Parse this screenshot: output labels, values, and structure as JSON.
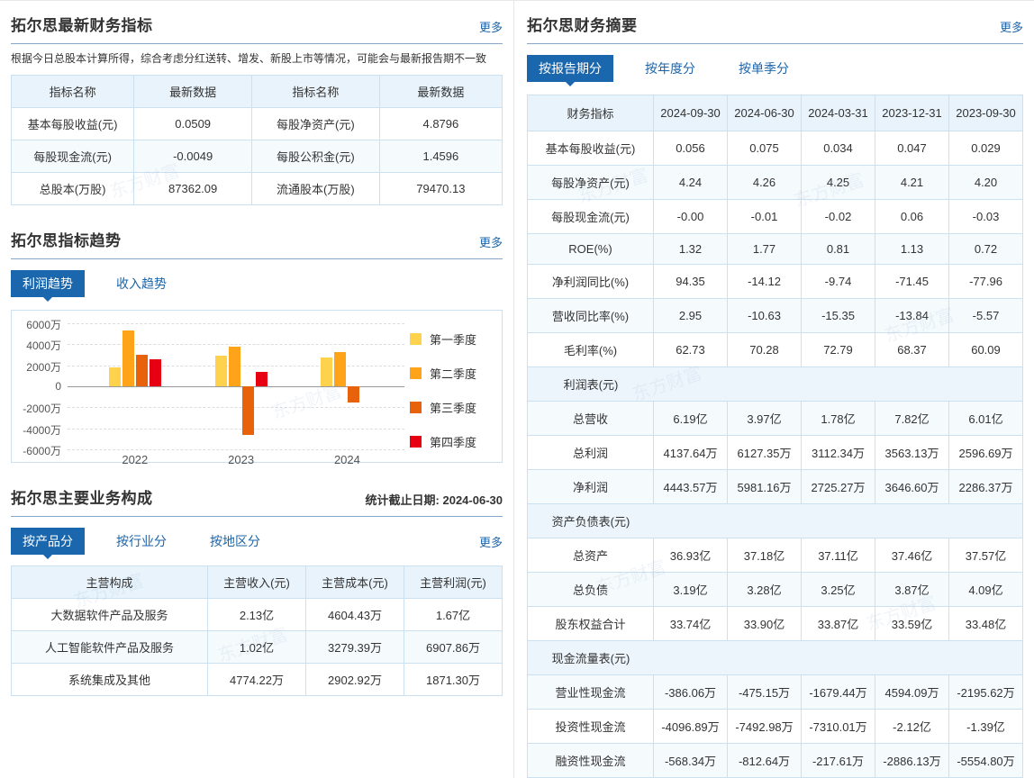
{
  "colors": {
    "accent_blue": "#1A67AD",
    "link_blue": "#1C65A9",
    "table_border": "#CBE0F1",
    "table_header_bg": "#E8F3FB",
    "row_alt_bg": "#F5FAFD",
    "section_row_bg": "#EDF5FC",
    "q1_yellow": "#FFD24D",
    "q2_orange": "#FFA319",
    "q3_dark_orange": "#E8620C",
    "q4_red": "#E60012"
  },
  "watermark": "东方财富",
  "left": {
    "latest": {
      "title": "拓尔思最新财务指标",
      "more": "更多",
      "note": "根据今日总股本计算所得，综合考虑分红送转、增发、新股上市等情况，可能会与最新报告期不一致",
      "table": {
        "headers": [
          "指标名称",
          "最新数据",
          "指标名称",
          "最新数据"
        ],
        "rows": [
          [
            "基本每股收益(元)",
            "0.0509",
            "每股净资产(元)",
            "4.8796"
          ],
          [
            "每股现金流(元)",
            "-0.0049",
            "每股公积金(元)",
            "1.4596"
          ],
          [
            "总股本(万股)",
            "87362.09",
            "流通股本(万股)",
            "79470.13"
          ]
        ]
      }
    },
    "trend": {
      "title": "拓尔思指标趋势",
      "more": "更多",
      "tabs": [
        {
          "label": "利润趋势",
          "active": true
        },
        {
          "label": "收入趋势",
          "active": false
        }
      ]
    },
    "business": {
      "title": "拓尔思主要业务构成",
      "date_label": "统计截止日期: 2024-06-30",
      "more": "更多",
      "tabs": [
        {
          "label": "按产品分",
          "active": true
        },
        {
          "label": "按行业分",
          "active": false
        },
        {
          "label": "按地区分",
          "active": false
        }
      ],
      "table": {
        "headers": [
          "主营构成",
          "主营收入(元)",
          "主营成本(元)",
          "主营利润(元)"
        ],
        "rows": [
          [
            "大数据软件产品及服务",
            "2.13亿",
            "4604.43万",
            "1.67亿"
          ],
          [
            "人工智能软件产品及服务",
            "1.02亿",
            "3279.39万",
            "6907.86万"
          ],
          [
            "系统集成及其他",
            "4774.22万",
            "2902.92万",
            "1871.30万"
          ]
        ]
      }
    }
  },
  "right": {
    "summary": {
      "title": "拓尔思财务摘要",
      "more": "更多",
      "tabs": [
        {
          "label": "按报告期分",
          "active": true
        },
        {
          "label": "按年度分",
          "active": false
        },
        {
          "label": "按单季分",
          "active": false
        }
      ],
      "table": {
        "headers": [
          "财务指标",
          "2024-09-30",
          "2024-06-30",
          "2024-03-31",
          "2023-12-31",
          "2023-09-30"
        ],
        "rows": [
          {
            "type": "data",
            "cells": [
              "基本每股收益(元)",
              "0.056",
              "0.075",
              "0.034",
              "0.047",
              "0.029"
            ]
          },
          {
            "type": "data",
            "cells": [
              "每股净资产(元)",
              "4.24",
              "4.26",
              "4.25",
              "4.21",
              "4.20"
            ]
          },
          {
            "type": "data",
            "cells": [
              "每股现金流(元)",
              "-0.00",
              "-0.01",
              "-0.02",
              "0.06",
              "-0.03"
            ]
          },
          {
            "type": "data",
            "cells": [
              "ROE(%)",
              "1.32",
              "1.77",
              "0.81",
              "1.13",
              "0.72"
            ]
          },
          {
            "type": "data",
            "cells": [
              "净利润同比(%)",
              "94.35",
              "-14.12",
              "-9.74",
              "-71.45",
              "-77.96"
            ]
          },
          {
            "type": "data",
            "cells": [
              "营收同比率(%)",
              "2.95",
              "-10.63",
              "-15.35",
              "-13.84",
              "-5.57"
            ]
          },
          {
            "type": "data",
            "cells": [
              "毛利率(%)",
              "62.73",
              "70.28",
              "72.79",
              "68.37",
              "60.09"
            ]
          },
          {
            "type": "section",
            "label": "利润表(元)"
          },
          {
            "type": "data",
            "cells": [
              "总营收",
              "6.19亿",
              "3.97亿",
              "1.78亿",
              "7.82亿",
              "6.01亿"
            ]
          },
          {
            "type": "data",
            "cells": [
              "总利润",
              "4137.64万",
              "6127.35万",
              "3112.34万",
              "3563.13万",
              "2596.69万"
            ]
          },
          {
            "type": "data",
            "cells": [
              "净利润",
              "4443.57万",
              "5981.16万",
              "2725.27万",
              "3646.60万",
              "2286.37万"
            ]
          },
          {
            "type": "section",
            "label": "资产负债表(元)"
          },
          {
            "type": "data",
            "cells": [
              "总资产",
              "36.93亿",
              "37.18亿",
              "37.11亿",
              "37.46亿",
              "37.57亿"
            ]
          },
          {
            "type": "data",
            "cells": [
              "总负债",
              "3.19亿",
              "3.28亿",
              "3.25亿",
              "3.87亿",
              "4.09亿"
            ]
          },
          {
            "type": "data",
            "cells": [
              "股东权益合计",
              "33.74亿",
              "33.90亿",
              "33.87亿",
              "33.59亿",
              "33.48亿"
            ]
          },
          {
            "type": "section",
            "label": "现金流量表(元)"
          },
          {
            "type": "data",
            "cells": [
              "营业性现金流",
              "-386.06万",
              "-475.15万",
              "-1679.44万",
              "4594.09万",
              "-2195.62万"
            ]
          },
          {
            "type": "data",
            "cells": [
              "投资性现金流",
              "-4096.89万",
              "-7492.98万",
              "-7310.01万",
              "-2.12亿",
              "-1.39亿"
            ]
          },
          {
            "type": "data",
            "cells": [
              "融资性现金流",
              "-568.34万",
              "-812.64万",
              "-217.61万",
              "-2886.13万",
              "-5554.80万"
            ]
          }
        ]
      }
    }
  },
  "chart_data": {
    "type": "bar",
    "title": "利润趋势",
    "categories": [
      "2022",
      "2023",
      "2024"
    ],
    "series": [
      {
        "name": "第一季度",
        "color": "#FFD24D",
        "values": [
          1800,
          2950,
          2725
        ]
      },
      {
        "name": "第二季度",
        "color": "#FFA319",
        "values": [
          5300,
          3800,
          3256
        ]
      },
      {
        "name": "第三季度",
        "color": "#E8620C",
        "values": [
          3000,
          -4650,
          -1538
        ]
      },
      {
        "name": "第四季度",
        "color": "#E60012",
        "values": [
          2550,
          1360,
          null
        ]
      }
    ],
    "yticks": [
      "6000万",
      "4000万",
      "2000万",
      "0",
      "-2000万",
      "-4000万",
      "-6000万"
    ],
    "ylim": [
      -6000,
      6000
    ],
    "unit": "万",
    "grid": true,
    "legend_position": "right"
  }
}
